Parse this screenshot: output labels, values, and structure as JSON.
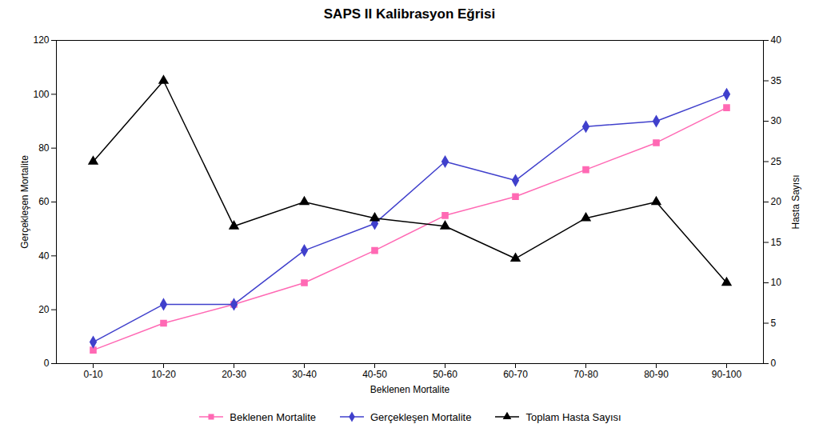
{
  "chart_data": {
    "type": "line",
    "title": "SAPS II Kalibrasyon Eğrisi",
    "categories": [
      "0-10",
      "10-20",
      "20-30",
      "30-40",
      "40-50",
      "50-60",
      "60-70",
      "70-80",
      "80-90",
      "90-100"
    ],
    "xlabel": "Beklenen Mortalite",
    "ylabel": "Gerçekleşen Mortalite",
    "y2label": "Hasta Sayısı",
    "ylim": [
      0,
      120
    ],
    "yticks": [
      0,
      20,
      40,
      60,
      80,
      100,
      120
    ],
    "y2lim": [
      0,
      40
    ],
    "y2ticks": [
      0,
      5,
      10,
      15,
      20,
      25,
      30,
      35,
      40
    ],
    "legend": "bottom",
    "series": [
      {
        "name": "Beklenen Mortalite",
        "color": "#FF69B4",
        "marker": "square",
        "values": [
          5,
          15,
          22,
          30,
          42,
          55,
          62,
          72,
          82,
          95
        ]
      },
      {
        "name": "Gerçekleşen Mortalite",
        "color": "#4040CC",
        "marker": "diamond",
        "values": [
          8,
          22,
          22,
          42,
          52,
          75,
          68,
          88,
          90,
          100
        ]
      },
      {
        "name": "Toplam Hasta Sayısı",
        "color": "#000000",
        "marker": "triangle",
        "axis": "y2",
        "values": [
          25,
          35,
          17,
          20,
          18,
          17,
          13,
          18,
          20,
          10
        ]
      }
    ]
  }
}
